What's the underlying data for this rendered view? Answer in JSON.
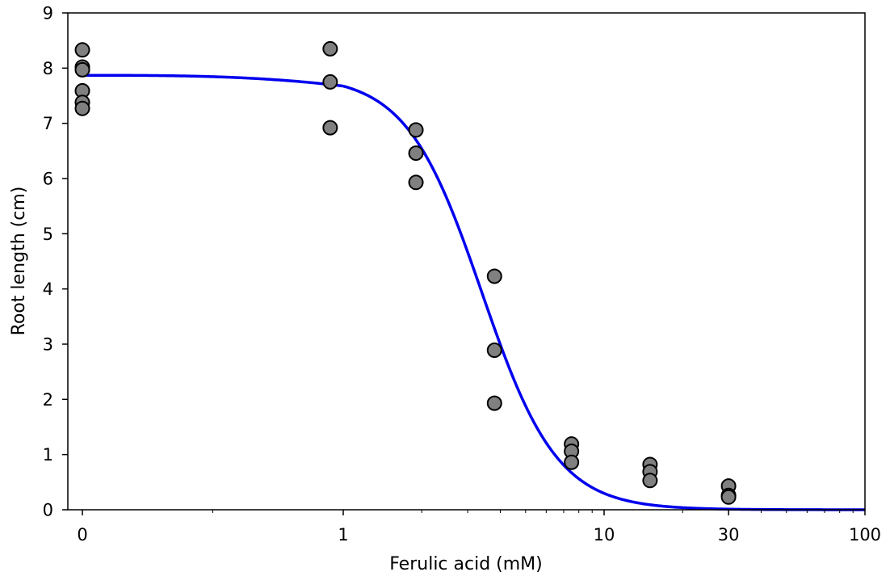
{
  "chart_data": {
    "type": "scatter",
    "xlabel": "Ferulic acid (mM)",
    "ylabel": "Root length (cm)",
    "xscale": "symlog",
    "xlim": [
      0,
      100
    ],
    "ylim": [
      0,
      9
    ],
    "x_ticks": [
      {
        "value": 0,
        "label": "0"
      },
      {
        "value": 1,
        "label": "1"
      },
      {
        "value": 10,
        "label": "10"
      },
      {
        "value": 30,
        "label": "30"
      },
      {
        "value": 100,
        "label": "100"
      }
    ],
    "y_ticks": [
      {
        "value": 0,
        "label": "0"
      },
      {
        "value": 1,
        "label": "1"
      },
      {
        "value": 2,
        "label": "2"
      },
      {
        "value": 3,
        "label": "3"
      },
      {
        "value": 4,
        "label": "4"
      },
      {
        "value": 5,
        "label": "5"
      },
      {
        "value": 6,
        "label": "6"
      },
      {
        "value": 7,
        "label": "7"
      },
      {
        "value": 8,
        "label": "8"
      },
      {
        "value": 9,
        "label": "9"
      }
    ],
    "grid": false,
    "legend": "none",
    "series": [
      {
        "type": "scatter",
        "color": "#808080",
        "edge_color": "#000000",
        "points": [
          {
            "x": 0,
            "y": 8.33
          },
          {
            "x": 0,
            "y": 8.02
          },
          {
            "x": 0,
            "y": 7.97
          },
          {
            "x": 0,
            "y": 7.59
          },
          {
            "x": 0,
            "y": 7.38
          },
          {
            "x": 0,
            "y": 7.27
          },
          {
            "x": 0.95,
            "y": 8.35
          },
          {
            "x": 0.95,
            "y": 7.75
          },
          {
            "x": 0.95,
            "y": 6.92
          },
          {
            "x": 1.9,
            "y": 6.88
          },
          {
            "x": 1.9,
            "y": 6.46
          },
          {
            "x": 1.9,
            "y": 5.93
          },
          {
            "x": 3.8,
            "y": 4.23
          },
          {
            "x": 3.8,
            "y": 2.89
          },
          {
            "x": 3.8,
            "y": 1.93
          },
          {
            "x": 7.5,
            "y": 1.19
          },
          {
            "x": 7.5,
            "y": 1.06
          },
          {
            "x": 7.5,
            "y": 0.86
          },
          {
            "x": 15,
            "y": 0.82
          },
          {
            "x": 15,
            "y": 0.69
          },
          {
            "x": 15,
            "y": 0.53
          },
          {
            "x": 30,
            "y": 0.43
          },
          {
            "x": 30,
            "y": 0.26
          },
          {
            "x": 30,
            "y": 0.23
          }
        ]
      },
      {
        "type": "line",
        "color": "#0000ee",
        "model": "logistic",
        "top": 7.87,
        "ec50": 3.4,
        "hill": 3.0
      }
    ]
  }
}
